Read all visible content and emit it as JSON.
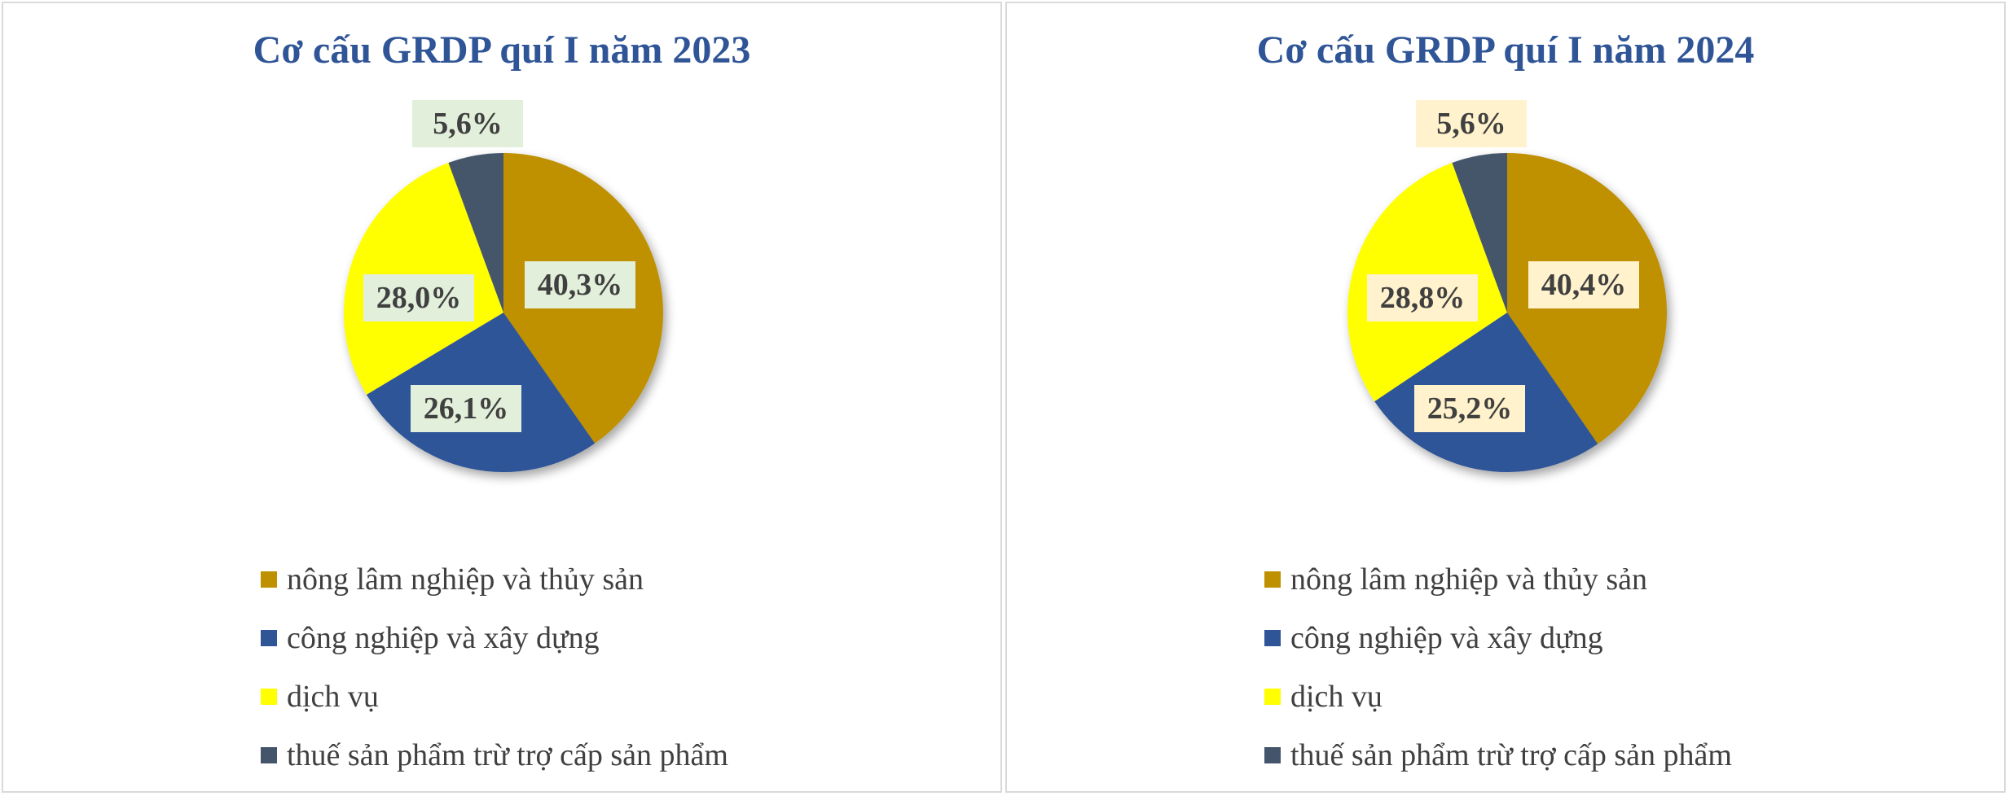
{
  "chart_data": [
    {
      "type": "pie",
      "title": "Cơ cấu GRDP quí I năm 2023",
      "label_background": "#e2efda",
      "categories": [
        "nông lâm nghiệp và thủy sản",
        "công nghiệp và xây dựng",
        "dịch vụ",
        "thuế sản phẩm trừ trợ cấp sản phẩm"
      ],
      "values": [
        40.3,
        26.1,
        28.0,
        5.6
      ],
      "data_labels": [
        "40,3%",
        "26,1%",
        "28,0%",
        "5,6%"
      ],
      "colors": [
        "#bf9000",
        "#2f5597",
        "#ffff00",
        "#44546a"
      ],
      "legend_position": "bottom"
    },
    {
      "type": "pie",
      "title": "Cơ cấu GRDP quí I năm 2024",
      "label_background": "#fff2cc",
      "categories": [
        "nông lâm nghiệp và thủy sản",
        "công nghiệp và xây dựng",
        "dịch vụ",
        "thuế sản phẩm trừ trợ cấp sản phẩm"
      ],
      "values": [
        40.4,
        25.2,
        28.8,
        5.6
      ],
      "data_labels": [
        "40,4%",
        "25,2%",
        "28,8%",
        "5,6%"
      ],
      "colors": [
        "#bf9000",
        "#2f5597",
        "#ffff00",
        "#44546a"
      ],
      "legend_position": "bottom"
    }
  ]
}
